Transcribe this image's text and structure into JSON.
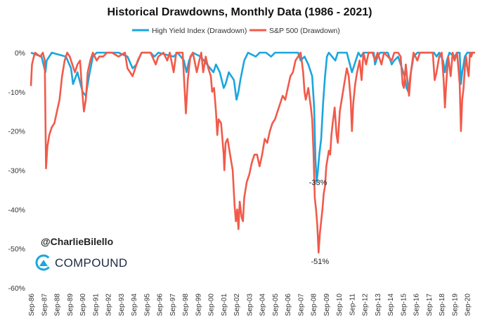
{
  "chart_data": {
    "type": "line",
    "title": "Historical Drawdowns, Monthly Data (1986 - 2021)",
    "xlabel": "",
    "ylabel": "",
    "ylim": [
      -60,
      0
    ],
    "yticks": [
      "0%",
      "-10%",
      "-20%",
      "-30%",
      "-40%",
      "-50%",
      "-60%"
    ],
    "yvalues": [
      0,
      -10,
      -20,
      -30,
      -40,
      -50,
      -60
    ],
    "x_start_year": 1986.67,
    "x_end_year": 2021.3,
    "xticks": [
      "Sep-86",
      "Sep-87",
      "Sep-88",
      "Sep-89",
      "Sep-90",
      "Sep-91",
      "Sep-92",
      "Sep-93",
      "Sep-94",
      "Sep-95",
      "Sep-96",
      "Sep-97",
      "Sep-98",
      "Sep-99",
      "Sep-00",
      "Sep-01",
      "Sep-02",
      "Sep-03",
      "Sep-04",
      "Sep-05",
      "Sep-06",
      "Sep-07",
      "Sep-08",
      "Sep-09",
      "Sep-10",
      "Sep-11",
      "Sep-12",
      "Sep-13",
      "Sep-14",
      "Sep-15",
      "Sep-16",
      "Sep-17",
      "Sep-18",
      "Sep-19",
      "Sep-20"
    ],
    "legend": "top-center",
    "grid": false,
    "series": [
      {
        "name": "High Yield Index (Drawdown)",
        "color": "#1aa6de",
        "points": [
          [
            1986.67,
            0
          ],
          [
            1987.5,
            -1
          ],
          [
            1987.8,
            -5
          ],
          [
            1987.9,
            -2
          ],
          [
            1988.3,
            0
          ],
          [
            1989.4,
            -1
          ],
          [
            1989.8,
            -4
          ],
          [
            1989.95,
            -8
          ],
          [
            1990.3,
            -5
          ],
          [
            1990.7,
            -10
          ],
          [
            1990.95,
            -11
          ],
          [
            1991.2,
            -6
          ],
          [
            1991.5,
            -1
          ],
          [
            1991.8,
            0
          ],
          [
            1993.5,
            0
          ],
          [
            1994.2,
            -1
          ],
          [
            1994.6,
            -4
          ],
          [
            1994.9,
            -3
          ],
          [
            1995.3,
            0
          ],
          [
            1996.0,
            0
          ],
          [
            1996.3,
            -1
          ],
          [
            1996.6,
            0
          ],
          [
            1997.8,
            -1
          ],
          [
            1998.1,
            0
          ],
          [
            1998.6,
            -2
          ],
          [
            1998.8,
            -5
          ],
          [
            1999.0,
            -2
          ],
          [
            1999.3,
            0
          ],
          [
            1999.9,
            -1
          ],
          [
            2000.4,
            -3
          ],
          [
            2000.9,
            -5
          ],
          [
            2001.1,
            -3
          ],
          [
            2001.4,
            -5
          ],
          [
            2001.7,
            -9
          ],
          [
            2001.85,
            -8
          ],
          [
            2002.1,
            -5
          ],
          [
            2002.5,
            -7
          ],
          [
            2002.7,
            -12
          ],
          [
            2002.85,
            -10
          ],
          [
            2003.0,
            -7
          ],
          [
            2003.3,
            -2
          ],
          [
            2003.6,
            0
          ],
          [
            2004.2,
            -1
          ],
          [
            2004.5,
            0
          ],
          [
            2005.0,
            0
          ],
          [
            2005.4,
            -1
          ],
          [
            2005.7,
            0
          ],
          [
            2007.5,
            0
          ],
          [
            2007.7,
            -2
          ],
          [
            2008.0,
            -1
          ],
          [
            2008.3,
            -3
          ],
          [
            2008.6,
            -6
          ],
          [
            2008.75,
            -14
          ],
          [
            2008.85,
            -27
          ],
          [
            2008.95,
            -33
          ],
          [
            2009.05,
            -30
          ],
          [
            2009.15,
            -26
          ],
          [
            2009.3,
            -22
          ],
          [
            2009.45,
            -13
          ],
          [
            2009.6,
            -6
          ],
          [
            2009.75,
            -1
          ],
          [
            2009.9,
            0
          ],
          [
            2010.4,
            -2
          ],
          [
            2010.6,
            0
          ],
          [
            2011.3,
            0
          ],
          [
            2011.7,
            -5
          ],
          [
            2011.9,
            -3
          ],
          [
            2012.2,
            0
          ],
          [
            2012.4,
            -1
          ],
          [
            2012.6,
            0
          ],
          [
            2013.4,
            0
          ],
          [
            2013.5,
            -3
          ],
          [
            2013.7,
            -1
          ],
          [
            2013.9,
            0
          ],
          [
            2014.5,
            0
          ],
          [
            2014.8,
            -3
          ],
          [
            2015.0,
            -2
          ],
          [
            2015.3,
            -1
          ],
          [
            2015.6,
            -4
          ],
          [
            2015.8,
            -6
          ],
          [
            2015.95,
            -9
          ],
          [
            2016.1,
            -10
          ],
          [
            2016.25,
            -6
          ],
          [
            2016.5,
            -1
          ],
          [
            2016.8,
            0
          ],
          [
            2018.1,
            0
          ],
          [
            2018.3,
            -1
          ],
          [
            2018.5,
            0
          ],
          [
            2018.8,
            -2
          ],
          [
            2018.95,
            -5
          ],
          [
            2019.1,
            -2
          ],
          [
            2019.3,
            0
          ],
          [
            2019.7,
            -1
          ],
          [
            2019.9,
            0
          ],
          [
            2020.1,
            0
          ],
          [
            2020.2,
            -8
          ],
          [
            2020.3,
            -5
          ],
          [
            2020.5,
            -1
          ],
          [
            2020.7,
            0
          ],
          [
            2021.3,
            0
          ]
        ]
      },
      {
        "name": "S&P 500 (Drawdown)",
        "color": "#f15a4a",
        "points": [
          [
            1986.67,
            -8.5
          ],
          [
            1986.75,
            -3
          ],
          [
            1986.9,
            -1
          ],
          [
            1987.0,
            0
          ],
          [
            1987.4,
            -1
          ],
          [
            1987.6,
            0
          ],
          [
            1987.75,
            -2
          ],
          [
            1987.85,
            -29.5
          ],
          [
            1987.95,
            -24
          ],
          [
            1988.1,
            -21
          ],
          [
            1988.3,
            -19
          ],
          [
            1988.5,
            -18
          ],
          [
            1988.7,
            -15
          ],
          [
            1988.9,
            -12
          ],
          [
            1989.1,
            -6
          ],
          [
            1989.3,
            -2
          ],
          [
            1989.5,
            0
          ],
          [
            1989.7,
            -1
          ],
          [
            1989.9,
            -3
          ],
          [
            1990.1,
            -5
          ],
          [
            1990.3,
            -3
          ],
          [
            1990.5,
            -2
          ],
          [
            1990.65,
            -9
          ],
          [
            1990.8,
            -15
          ],
          [
            1990.95,
            -12
          ],
          [
            1991.1,
            -5
          ],
          [
            1991.3,
            -2
          ],
          [
            1991.5,
            0
          ],
          [
            1991.8,
            -2
          ],
          [
            1992.0,
            -1
          ],
          [
            1992.3,
            -1
          ],
          [
            1992.6,
            0
          ],
          [
            1993.0,
            0
          ],
          [
            1993.5,
            -1
          ],
          [
            1994.0,
            0
          ],
          [
            1994.2,
            -4
          ],
          [
            1994.4,
            -5
          ],
          [
            1994.6,
            -6
          ],
          [
            1994.8,
            -4
          ],
          [
            1995.0,
            -2
          ],
          [
            1995.3,
            0
          ],
          [
            1996.0,
            0
          ],
          [
            1996.4,
            -3
          ],
          [
            1996.6,
            -1
          ],
          [
            1997.0,
            0
          ],
          [
            1997.3,
            -2
          ],
          [
            1997.5,
            0
          ],
          [
            1997.8,
            -5
          ],
          [
            1998.0,
            0
          ],
          [
            1998.5,
            0
          ],
          [
            1998.65,
            -9
          ],
          [
            1998.75,
            -15.5
          ],
          [
            1998.9,
            -7
          ],
          [
            1999.1,
            -1
          ],
          [
            1999.3,
            0
          ],
          [
            1999.6,
            -5
          ],
          [
            1999.8,
            -2
          ],
          [
            1999.95,
            0
          ],
          [
            2000.1,
            -5
          ],
          [
            2000.3,
            -1
          ],
          [
            2000.5,
            -4
          ],
          [
            2000.7,
            -6
          ],
          [
            2000.8,
            -10
          ],
          [
            2000.95,
            -9
          ],
          [
            2001.1,
            -15
          ],
          [
            2001.2,
            -21
          ],
          [
            2001.3,
            -17
          ],
          [
            2001.5,
            -18
          ],
          [
            2001.7,
            -26
          ],
          [
            2001.75,
            -30
          ],
          [
            2001.85,
            -23
          ],
          [
            2002.0,
            -22
          ],
          [
            2002.2,
            -26
          ],
          [
            2002.4,
            -30
          ],
          [
            2002.55,
            -39
          ],
          [
            2002.65,
            -43
          ],
          [
            2002.75,
            -40
          ],
          [
            2002.85,
            -45
          ],
          [
            2002.95,
            -38
          ],
          [
            2003.1,
            -42
          ],
          [
            2003.2,
            -43
          ],
          [
            2003.3,
            -37
          ],
          [
            2003.5,
            -33
          ],
          [
            2003.7,
            -31
          ],
          [
            2003.9,
            -28
          ],
          [
            2004.1,
            -26
          ],
          [
            2004.3,
            -26
          ],
          [
            2004.5,
            -29
          ],
          [
            2004.7,
            -26
          ],
          [
            2004.9,
            -22
          ],
          [
            2005.1,
            -23
          ],
          [
            2005.3,
            -20
          ],
          [
            2005.5,
            -18
          ],
          [
            2005.7,
            -17
          ],
          [
            2005.9,
            -15
          ],
          [
            2006.1,
            -13
          ],
          [
            2006.3,
            -11
          ],
          [
            2006.5,
            -12
          ],
          [
            2006.7,
            -9
          ],
          [
            2006.9,
            -6
          ],
          [
            2007.1,
            -5
          ],
          [
            2007.3,
            -2
          ],
          [
            2007.5,
            -1
          ],
          [
            2007.7,
            0
          ],
          [
            2007.9,
            -5
          ],
          [
            2008.0,
            -10
          ],
          [
            2008.1,
            -12
          ],
          [
            2008.3,
            -9
          ],
          [
            2008.5,
            -14
          ],
          [
            2008.6,
            -17
          ],
          [
            2008.7,
            -25
          ],
          [
            2008.8,
            -37
          ],
          [
            2008.9,
            -40
          ],
          [
            2009.0,
            -44
          ],
          [
            2009.1,
            -51
          ],
          [
            2009.2,
            -46
          ],
          [
            2009.3,
            -43
          ],
          [
            2009.4,
            -40
          ],
          [
            2009.5,
            -36
          ],
          [
            2009.6,
            -34
          ],
          [
            2009.7,
            -29
          ],
          [
            2009.8,
            -27
          ],
          [
            2009.9,
            -25
          ],
          [
            2010.0,
            -26
          ],
          [
            2010.1,
            -21
          ],
          [
            2010.2,
            -18
          ],
          [
            2010.35,
            -14
          ],
          [
            2010.5,
            -21
          ],
          [
            2010.6,
            -23
          ],
          [
            2010.75,
            -15
          ],
          [
            2010.9,
            -12
          ],
          [
            2011.1,
            -8
          ],
          [
            2011.3,
            -4
          ],
          [
            2011.45,
            -6
          ],
          [
            2011.6,
            -12
          ],
          [
            2011.7,
            -20
          ],
          [
            2011.8,
            -13
          ],
          [
            2011.95,
            -8
          ],
          [
            2012.1,
            -5
          ],
          [
            2012.3,
            -2
          ],
          [
            2012.45,
            -7
          ],
          [
            2012.6,
            0
          ],
          [
            2012.8,
            -3
          ],
          [
            2013.0,
            0
          ],
          [
            2013.3,
            0
          ],
          [
            2013.5,
            -2
          ],
          [
            2013.7,
            0
          ],
          [
            2014.0,
            -3
          ],
          [
            2014.2,
            0
          ],
          [
            2014.8,
            -2
          ],
          [
            2015.0,
            0
          ],
          [
            2015.3,
            0
          ],
          [
            2015.5,
            -1
          ],
          [
            2015.65,
            -8
          ],
          [
            2015.75,
            -9
          ],
          [
            2015.9,
            -3
          ],
          [
            2016.05,
            -8
          ],
          [
            2016.15,
            -11
          ],
          [
            2016.3,
            -5
          ],
          [
            2016.5,
            0
          ],
          [
            2016.8,
            -2
          ],
          [
            2017.0,
            0
          ],
          [
            2018.0,
            0
          ],
          [
            2018.15,
            -7
          ],
          [
            2018.3,
            -5
          ],
          [
            2018.5,
            -1
          ],
          [
            2018.7,
            0
          ],
          [
            2018.85,
            -7
          ],
          [
            2018.95,
            -14
          ],
          [
            2019.05,
            -8
          ],
          [
            2019.2,
            -1
          ],
          [
            2019.4,
            -6
          ],
          [
            2019.55,
            0
          ],
          [
            2019.7,
            -2
          ],
          [
            2019.9,
            0
          ],
          [
            2020.1,
            -8
          ],
          [
            2020.2,
            -20
          ],
          [
            2020.3,
            -12
          ],
          [
            2020.4,
            -9
          ],
          [
            2020.5,
            -4
          ],
          [
            2020.6,
            -1
          ],
          [
            2020.7,
            -4
          ],
          [
            2020.8,
            -6
          ],
          [
            2020.9,
            0
          ],
          [
            2021.0,
            -1
          ],
          [
            2021.1,
            0
          ],
          [
            2021.3,
            0
          ]
        ]
      }
    ],
    "annotations": [
      {
        "text": "-33%",
        "x": 2008.95,
        "y": -33
      },
      {
        "text": "-51%",
        "x": 2009.1,
        "y": -51
      }
    ]
  },
  "watermark": {
    "handle": "@CharlieBilello",
    "brand": "COMPOUND"
  }
}
